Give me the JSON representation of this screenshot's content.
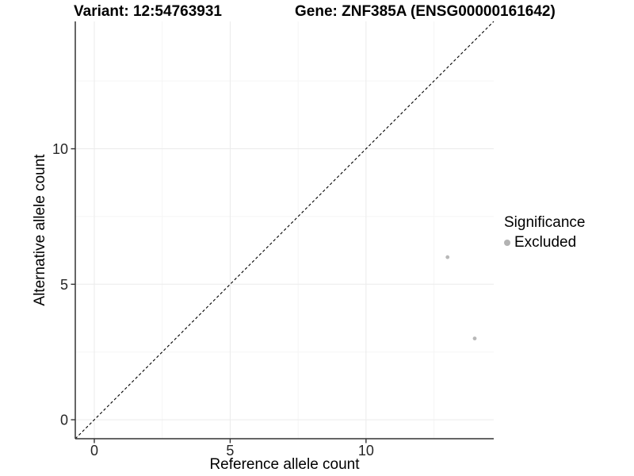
{
  "chart_data": {
    "type": "scatter",
    "title_left": "Variant: 12:54763931",
    "title_right": "Gene: ZNF385A (ENSG00000161642)",
    "xlabel": "Reference allele count",
    "ylabel": "Alternative allele count",
    "xlim": [
      -0.7,
      14.7
    ],
    "ylim": [
      -0.7,
      14.7
    ],
    "x_major_ticks": [
      0,
      5,
      10
    ],
    "y_major_ticks": [
      0,
      5,
      10
    ],
    "x_minor_ticks": [
      2.5,
      7.5,
      12.5
    ],
    "y_minor_ticks": [
      2.5,
      7.5,
      12.5
    ],
    "grid": true,
    "identity_line": {
      "style": "dashed",
      "slope": 1,
      "intercept": 0
    },
    "series": [
      {
        "name": "Excluded",
        "color": "#b8b8b8",
        "points": [
          {
            "x": 13,
            "y": 6
          },
          {
            "x": 14,
            "y": 3
          }
        ]
      }
    ],
    "legend": {
      "title": "Significance",
      "position": "right",
      "items": [
        {
          "label": "Excluded",
          "color": "#b3b3b3"
        }
      ]
    }
  },
  "colors": {
    "background": "#ffffff",
    "grid_major": "#ebebeb",
    "grid_minor": "#f5f5f5",
    "axis_line": "#333333",
    "tick_text": "#262626",
    "dashed_line": "#000000",
    "point": "#b8b8b8"
  }
}
